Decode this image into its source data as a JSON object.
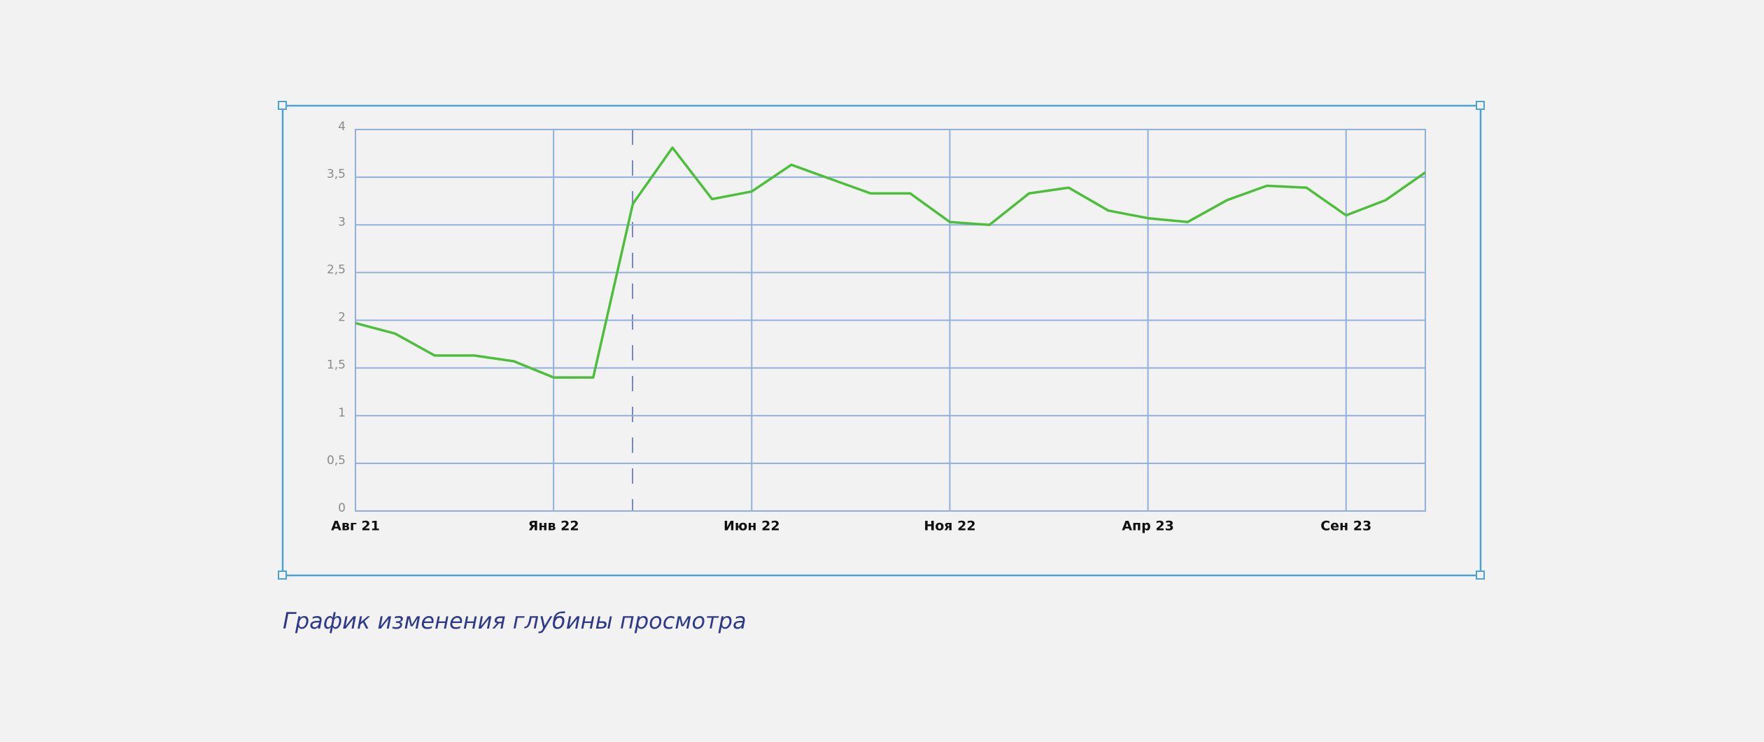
{
  "chart_data": {
    "type": "line",
    "title": "График изменения глубины просмотра",
    "categories": [
      "Авг 21",
      null,
      null,
      null,
      null,
      "Янв 22",
      null,
      null,
      null,
      null,
      "Июн 22",
      null,
      null,
      null,
      null,
      "Ноя 22",
      null,
      null,
      null,
      null,
      "Апр 23",
      null,
      null,
      null,
      null,
      "Сен 23",
      null,
      null
    ],
    "series": [
      {
        "color": "#4cbf3a",
        "values": [
          1.97,
          1.86,
          1.63,
          1.63,
          1.57,
          1.4,
          1.4,
          3.22,
          3.81,
          3.27,
          3.35,
          3.63,
          3.48,
          3.33,
          3.33,
          3.03,
          3.0,
          3.33,
          3.39,
          3.15,
          3.07,
          3.03,
          3.26,
          3.41,
          3.39,
          3.1,
          3.26,
          3.55
        ]
      }
    ],
    "ylim": [
      0,
      4
    ],
    "yticks": [
      0,
      {
        "value": 0.5,
        "label": "0,5"
      },
      1,
      {
        "value": 1.5,
        "label": "1,5"
      },
      2,
      {
        "value": 2.5,
        "label": "2,5"
      },
      3,
      {
        "value": 3.5,
        "label": "3,5"
      },
      4
    ],
    "grid": true
  }
}
